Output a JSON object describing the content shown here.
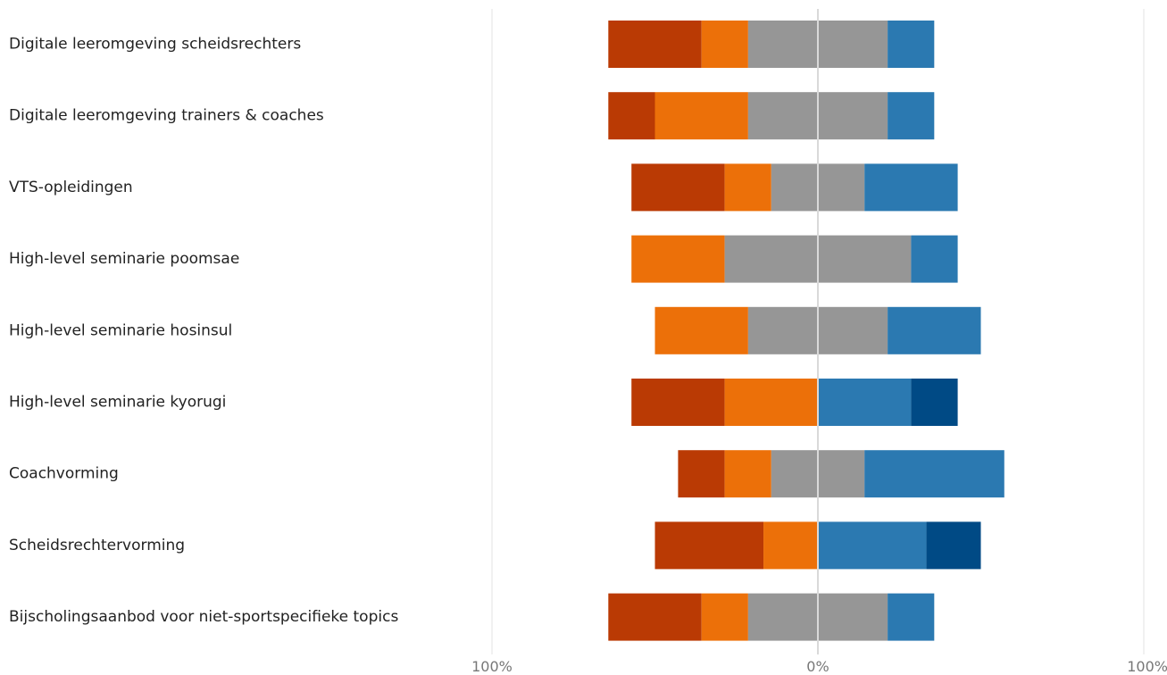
{
  "chart_data": {
    "type": "bar",
    "orientation": "horizontal",
    "stacking": "diverging",
    "categories": [
      "Digitale leeromgeving scheidsrechters",
      "Digitale leeromgeving trainers & coaches",
      "VTS-opleidingen",
      "High-level seminarie poomsae",
      "High-level seminarie hosinsul",
      "High-level seminarie kyorugi",
      "Coachvorming",
      "Scheidsrechtervorming",
      "Bijscholingsaanbod voor niet-sportspecifieke topics"
    ],
    "series": [
      {
        "color": "#BA3A04",
        "values": [
          28.6,
          14.3,
          28.6,
          0,
          0,
          28.6,
          14.3,
          33.3,
          28.6
        ]
      },
      {
        "color": "#EC7009",
        "values": [
          14.3,
          28.6,
          14.3,
          28.6,
          28.6,
          28.6,
          14.3,
          16.7,
          14.3
        ]
      },
      {
        "color": "#969696",
        "values": [
          42.8,
          42.8,
          28.6,
          57.2,
          42.8,
          0,
          28.6,
          0,
          42.8
        ]
      },
      {
        "color": "#2B79B1",
        "values": [
          14.3,
          14.3,
          28.6,
          14.3,
          28.6,
          28.6,
          42.9,
          33.3,
          14.3
        ]
      },
      {
        "color": "#004A85",
        "values": [
          0,
          0,
          0,
          0,
          0,
          14.3,
          0,
          16.7,
          0
        ]
      }
    ],
    "neutral_series_index": 2,
    "xlim": [
      -100,
      100
    ],
    "x_ticks": [
      "100%",
      "0%",
      "100%"
    ],
    "grid": true,
    "title": "",
    "xlabel": "",
    "ylabel": ""
  }
}
